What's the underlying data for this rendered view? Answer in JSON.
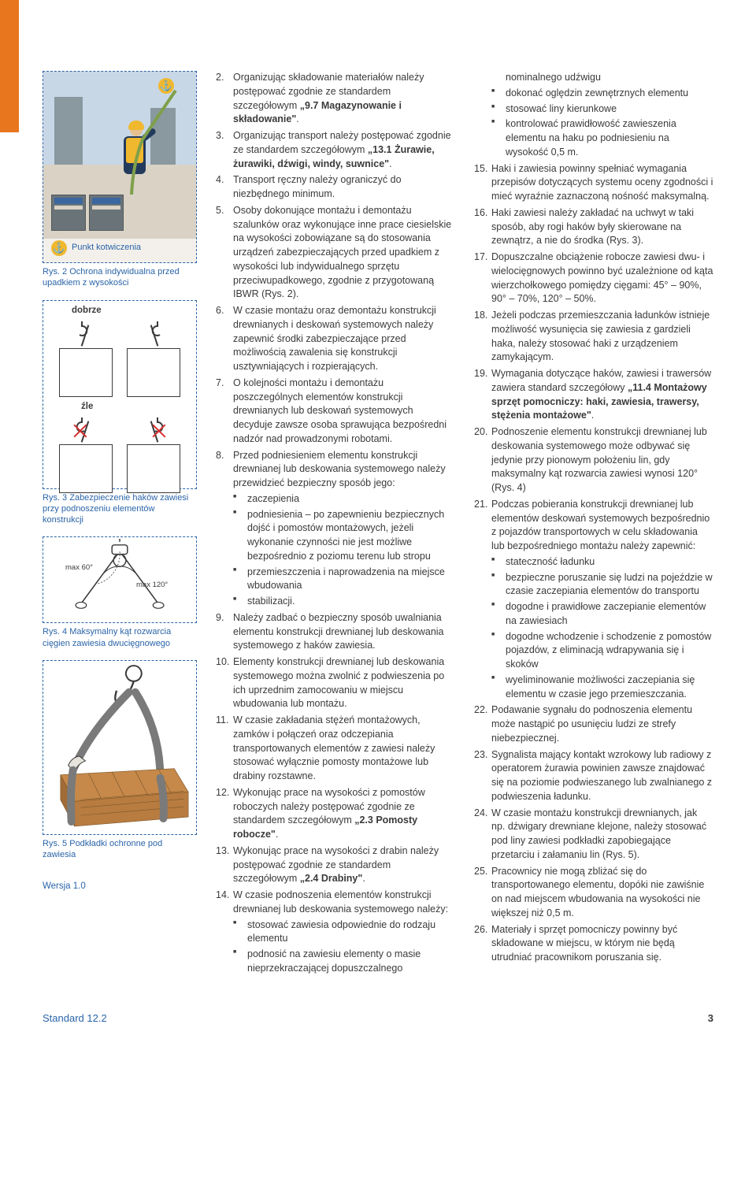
{
  "sidebar": {
    "fig2": {
      "caption": "Rys. 2 Ochrona indywidualna przed upadkiem z wysokości",
      "anchor_label": "Punkt kotwiczenia",
      "anchor_icon": "⚓"
    },
    "fig3": {
      "caption": "Rys. 3 Zabezpieczenie haków zawiesi przy podnoszeniu elementów konstrukcji",
      "label_good": "dobrze",
      "label_bad": "źle"
    },
    "fig4": {
      "caption": "Rys. 4 Maksymalny kąt rozwarcia cięgien zawiesia dwucięgnowego",
      "max60": "max 60°",
      "max120": "max 120°"
    },
    "fig5": {
      "caption": "Rys. 5 Podkładki ochronne pod zawiesia"
    },
    "version": "Wersja 1.0"
  },
  "col1": {
    "items": [
      {
        "n": "2.",
        "t": "Organizując składowanie materiałów należy postępować zgodnie ze standardem szczegółowym „9.7 Magazynowanie i składowanie\"."
      },
      {
        "n": "3.",
        "t": "Organizując transport należy postępować zgodnie ze standardem szczegółowym „13.1 Żurawie, żurawiki, dźwigi, windy, suwnice\"."
      },
      {
        "n": "4.",
        "t": "Transport ręczny należy ograniczyć do niezbędnego minimum."
      },
      {
        "n": "5.",
        "t": "Osoby dokonujące montażu i demontażu szalunków oraz wykonujące inne prace ciesielskie na wysokości zobowiązane są do stosowania urządzeń zabezpieczających przed upadkiem z wysokości lub indywidualnego sprzętu przeciwupadkowego, zgodnie z przygotowaną IBWR (Rys. 2)."
      },
      {
        "n": "6.",
        "t": "W czasie montażu oraz demontażu konstrukcji drewnianych i deskowań systemowych należy zapewnić środki zabezpieczające przed możliwością zawalenia się konstrukcji usztywniających i rozpierających."
      },
      {
        "n": "7.",
        "t": "O kolejności montażu i demontażu poszczególnych elementów konstrukcji drewnianych lub deskowań systemowych decyduje zawsze osoba sprawująca bezpośredni nadzór nad prowadzonymi robotami."
      },
      {
        "n": "8.",
        "t": "Przed podniesieniem elementu konstrukcji drewnianej lub deskowania systemowego należy przewidzieć bezpieczny sposób jego:",
        "sub": [
          "zaczepienia",
          "podniesienia – po zapewnieniu bezpiecznych dojść i pomostów montażowych, jeżeli wykonanie czynności nie jest możliwe bezpośrednio z poziomu terenu lub stropu",
          "przemieszczenia i naprowadzenia na miejsce wbudowania",
          "stabilizacji."
        ]
      },
      {
        "n": "9.",
        "t": "Należy zadbać o bezpieczny sposób uwalniania elementu konstrukcji drewnianej lub deskowania systemowego z haków zawiesia."
      },
      {
        "n": "10.",
        "t": "Elementy konstrukcji drewnianej lub deskowania systemowego można zwolnić z podwieszenia po ich uprzednim zamocowaniu w miejscu wbudowania lub montażu."
      },
      {
        "n": "11.",
        "t": "W czasie zakładania stężeń montażowych, zamków i połączeń oraz odczepiania transportowanych elementów z zawiesi należy stosować wyłącznie pomosty montażowe lub drabiny rozstawne."
      },
      {
        "n": "12.",
        "t": "Wykonując prace na wysokości z pomostów roboczych należy postępować zgodnie ze standardem szczegółowym „2.3 Pomosty robocze\"."
      },
      {
        "n": "13.",
        "t": "Wykonując prace na wysokości z drabin należy postępować zgodnie ze standardem szczegółowym „2.4 Drabiny\"."
      },
      {
        "n": "14.",
        "t": "W czasie podnoszenia elementów konstrukcji drewnianej lub deskowania systemowego należy:",
        "sub": [
          "stosować zawiesia odpowiednie do rodzaju elementu",
          "podnosić na zawiesiu elementy o masie nieprzekraczającej dopuszczalnego"
        ]
      }
    ]
  },
  "col2": {
    "lead_sub": [
      "nominalnego udźwigu",
      "dokonać oględzin zewnętrznych elementu",
      "stosować liny kierunkowe",
      "kontrolować prawidłowość zawieszenia elementu na haku po podniesieniu na wysokość 0,5 m."
    ],
    "items": [
      {
        "n": "15.",
        "t": "Haki i zawiesia powinny spełniać wymagania przepisów dotyczących systemu oceny zgodności i mieć wyraźnie zaznaczoną nośność maksymalną."
      },
      {
        "n": "16.",
        "t": "Haki zawiesi należy zakładać na uchwyt w taki sposób, aby rogi haków były skierowane na zewnątrz, a nie do środka (Rys. 3)."
      },
      {
        "n": "17.",
        "t": "Dopuszczalne obciążenie robocze zawiesi dwu- i wielocięgnowych powinno być uzależnione od kąta wierzchołkowego pomiędzy cięgami: 45° – 90%, 90° – 70%, 120° – 50%."
      },
      {
        "n": "18.",
        "t": "Jeżeli podczas przemieszczania ładunków istnieje możliwość wysunięcia się zawiesia z gardzieli haka, należy stosować haki z urządzeniem zamykającym."
      },
      {
        "n": "19.",
        "t": "Wymagania dotyczące haków, zawiesi i trawersów zawiera standard szczegółowy „11.4 Montażowy sprzęt pomocniczy: haki, zawiesia, trawersy, stężenia montażowe\"."
      },
      {
        "n": "20.",
        "t": "Podnoszenie elementu konstrukcji drewnianej lub deskowania systemowego może odbywać się jedynie przy pionowym położeniu lin, gdy maksymalny kąt rozwarcia zawiesi wynosi 120° (Rys. 4)"
      },
      {
        "n": "21.",
        "t": "Podczas pobierania konstrukcji drewnianej lub elementów deskowań systemowych bezpośrednio z pojazdów transportowych w celu składowania lub bezpośredniego montażu należy zapewnić:",
        "sub": [
          "stateczność ładunku",
          "bezpieczne poruszanie się ludzi na pojeździe w czasie zaczepiania elementów do transportu",
          "dogodne i prawidłowe zaczepianie elementów na zawiesiach",
          "dogodne wchodzenie i schodzenie z pomostów pojazdów, z eliminacją wdrapywania się i skoków",
          "wyeliminowanie możliwości zaczepiania się elementu w czasie jego przemieszczania."
        ]
      },
      {
        "n": "22.",
        "t": "Podawanie sygnału do podnoszenia elementu może nastąpić po usunięciu ludzi ze strefy niebezpiecznej."
      },
      {
        "n": "23.",
        "t": "Sygnalista mający kontakt wzrokowy lub radiowy z operatorem żurawia powinien zawsze znajdować się na poziomie podwieszanego lub zwalnianego z podwieszenia ładunku."
      },
      {
        "n": "24.",
        "t": "W czasie montażu konstrukcji drewnianych, jak np. dźwigary drewniane klejone, należy stosować pod liny zawiesi podkładki zapobiegające przetarciu i załamaniu lin (Rys. 5)."
      },
      {
        "n": "25.",
        "t": "Pracownicy nie mogą zbliżać się do transportowanego elementu, dopóki nie zawiśnie on nad miejscem wbudowania na wysokości nie większej niż 0,5 m."
      },
      {
        "n": "26.",
        "t": "Materiały i sprzęt pomocniczy powinny być składowane w miejscu, w którym nie będą utrudniać pracownikom poruszania się."
      }
    ]
  },
  "footer": {
    "standard": "Standard 12.2",
    "page": "3"
  },
  "colors": {
    "blue": "#2a64a8",
    "orange": "#e8761e",
    "red": "#d62f2f",
    "wood": "#c6894a",
    "wood_dark": "#a06b36"
  }
}
